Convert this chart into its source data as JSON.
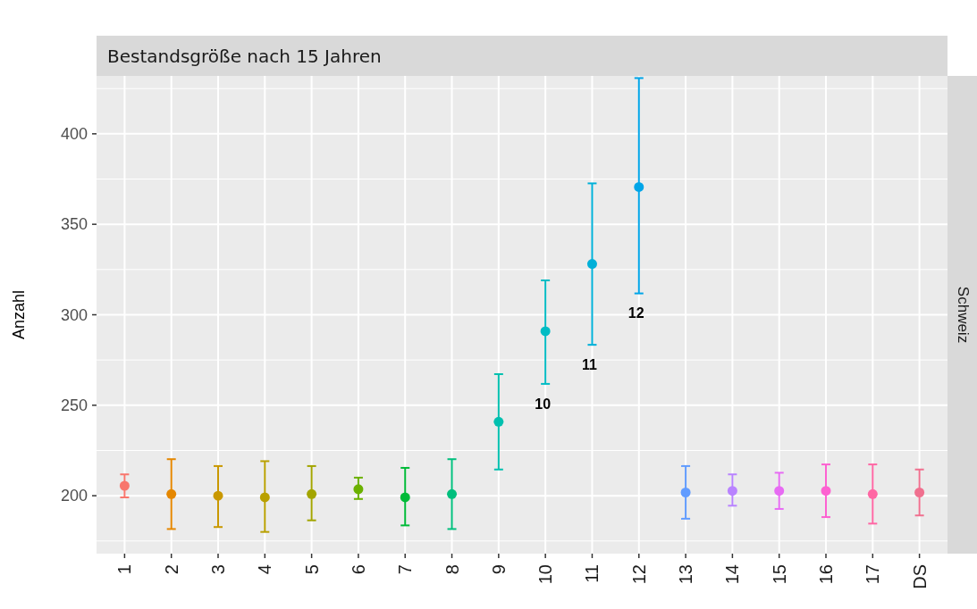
{
  "chart_data": {
    "type": "scatter",
    "title": "Bestandsgröße nach 15 Jahren",
    "ylabel": "Anzahl",
    "categories": [
      "1",
      "2",
      "3",
      "4",
      "5",
      "6",
      "7",
      "8",
      "9",
      "10",
      "11",
      "12",
      "13",
      "14",
      "15",
      "16",
      "17",
      "DS"
    ],
    "values": [
      205.5,
      200.9,
      200,
      199.1,
      200.9,
      203.6,
      199.1,
      200.9,
      240.9,
      290.9,
      328.1,
      370.6,
      201.8,
      202.7,
      202.7,
      202.7,
      200.9,
      201.8
    ],
    "errors": [
      [
        199.1,
        211.8
      ],
      [
        181.6,
        220.2
      ],
      [
        182.7,
        216.4
      ],
      [
        180,
        219.1
      ],
      [
        186.4,
        216.4
      ],
      [
        198.2,
        210
      ],
      [
        183.6,
        215.4
      ],
      [
        181.6,
        220.2
      ],
      [
        214.5,
        267.2
      ],
      [
        261.8,
        319
      ],
      [
        283.4,
        372.6
      ],
      [
        311.8,
        430.8
      ],
      [
        187.3,
        216.4
      ],
      [
        194.5,
        211.8
      ],
      [
        192.7,
        212.7
      ],
      [
        188.2,
        217.3
      ],
      [
        184.6,
        217.3
      ],
      [
        189.1,
        214.5
      ]
    ],
    "colors": [
      "#f8766d",
      "#e58700",
      "#c99800",
      "#b9a000",
      "#a3a500",
      "#6bb100",
      "#00ba38",
      "#00bf7d",
      "#00c0af",
      "#00bcc4",
      "#00b0d8",
      "#00a5e8",
      "#619cff",
      "#b983ff",
      "#e76bf3",
      "#fd61d1",
      "#ff67a4",
      "#f0708f"
    ],
    "ylim": [
      168,
      432
    ],
    "yticks": [
      200,
      250,
      300,
      350,
      400
    ],
    "grid": true,
    "marker": "circle",
    "annotations": [
      "10",
      "11",
      "12",
      "Schweiz"
    ]
  }
}
